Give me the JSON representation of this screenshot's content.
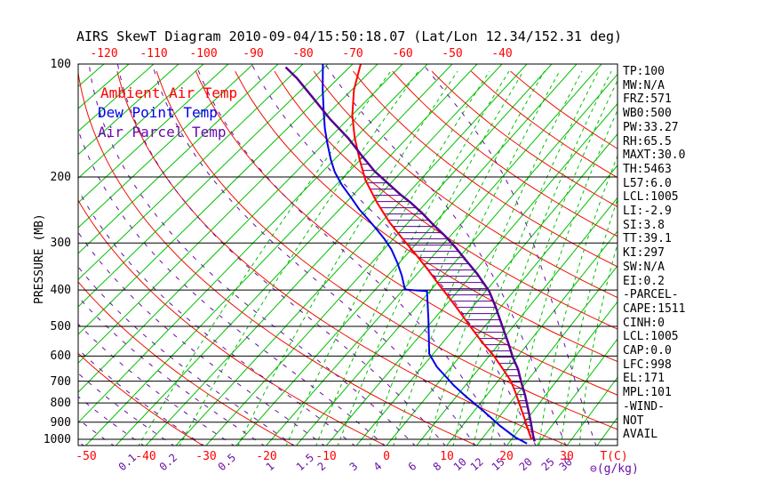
{
  "title": "AIRS SkewT Diagram 2010-09-04/15:50:18.07 (Lat/Lon 12.34/152.31 deg)",
  "legend": {
    "ambient": "Ambient Air Temp",
    "dew": "Dew Point Temp",
    "parcel": "Air Parcel Temp"
  },
  "axes": {
    "pressure_label": "PRESSURE (MB)",
    "pressure_ticks": [
      100,
      200,
      300,
      400,
      500,
      600,
      700,
      800,
      900,
      1000
    ],
    "top_temp_ticks": [
      -120,
      -110,
      -100,
      -90,
      -80,
      -70,
      -60,
      -50,
      -40
    ],
    "bottom_temp_ticks": [
      -50,
      -40,
      -30,
      -20,
      -10,
      0,
      10,
      20,
      30
    ],
    "temp_unit_label": "T(C)",
    "mixing_unit_label": "⊖(g/kg)",
    "mixing_ratio_ticks": [
      0.1,
      0.2,
      0.5,
      1,
      1.5,
      2,
      3,
      4,
      6,
      8,
      10,
      12,
      15,
      20,
      25,
      30
    ]
  },
  "stats": [
    "TP:100",
    "MW:N/A",
    "FRZ:571",
    "WB0:500",
    "PW:33.27",
    "RH:65.5",
    "MAXT:30.0",
    "TH:5463",
    "L57:6.0",
    "LCL:1005",
    "LI:-2.9",
    "SI:3.8",
    "TT:39.1",
    "KI:297",
    "SW:N/A",
    "EI:0.2",
    "-PARCEL-",
    "CAPE:1511",
    "CINH:0",
    "LCL:1005",
    "CAP:0.0",
    "LFC:998",
    "EL:171",
    "MPL:101",
    "-WIND-",
    "NOT",
    "AVAIL"
  ],
  "colors": {
    "isotherm_green": "#00c000",
    "dry_adiabat_red": "#ee1100",
    "mixing_green": "#00c000",
    "moist_purple": "#6a0ba8",
    "ambient_curve": "#ff0000",
    "dew_curve": "#0000e8",
    "parcel_curve": "#550090",
    "axis_black": "#000000",
    "label_red": "#ff0000",
    "label_purple": "#6a0ba8"
  },
  "chart_data": {
    "type": "line",
    "title": "AIRS SkewT Diagram 2010-09-04/15:50:18.07 (Lat/Lon 12.34/152.31 deg)",
    "xlabel": "Temperature (C), skewed axis",
    "ylabel": "Pressure (MB), log scale",
    "pressure_range": [
      100,
      1050
    ],
    "bottom_temp_range": [
      -51,
      38
    ],
    "legend_position": "top-left inside plot",
    "grid": {
      "isotherm_step_c": 5,
      "isotherm_range_c": [
        -145,
        40
      ],
      "dry_adiabat_theta_k": [
        240,
        255,
        270,
        285,
        300,
        315,
        330,
        345,
        360,
        375,
        390,
        405,
        420,
        435,
        450
      ],
      "moist_adiabat_start_c": [
        -50,
        -45,
        -40,
        -35,
        -30,
        -25,
        -20,
        -15,
        -10,
        -5,
        0,
        5,
        10,
        15,
        20,
        25,
        30,
        35
      ],
      "mixing_ratio_g_kg": [
        0.1,
        0.2,
        0.5,
        1,
        1.5,
        2,
        3,
        4,
        6,
        8,
        10,
        12,
        15,
        20,
        25,
        30
      ]
    },
    "hatch_note": "horizontal hatching between ambient and parcel curves where parcel is warmer (CAPE area)",
    "series": [
      {
        "name": "Ambient Air Temp",
        "color": "#ff0000",
        "points_p_t": [
          [
            100,
            -68.4
          ],
          [
            117,
            -64.6
          ],
          [
            137,
            -59.9
          ],
          [
            157,
            -55.2
          ],
          [
            180,
            -50.1
          ],
          [
            204,
            -45.3
          ],
          [
            234,
            -39.2
          ],
          [
            264,
            -33.5
          ],
          [
            290,
            -28.7
          ],
          [
            320,
            -23.6
          ],
          [
            351,
            -19.0
          ],
          [
            387,
            -14.4
          ],
          [
            419,
            -10.6
          ],
          [
            460,
            -6.3
          ],
          [
            503,
            -2.3
          ],
          [
            552,
            1.9
          ],
          [
            598,
            5.7
          ],
          [
            650,
            9.2
          ],
          [
            698,
            12.1
          ],
          [
            745,
            14.3
          ],
          [
            810,
            16.9
          ],
          [
            878,
            19.4
          ],
          [
            936,
            21.3
          ],
          [
            1003,
            23.4
          ]
        ]
      },
      {
        "name": "Dew Point Temp",
        "color": "#0000e8",
        "points_p_t": [
          [
            100,
            -76.0
          ],
          [
            117,
            -70.8
          ],
          [
            134,
            -66.2
          ],
          [
            149,
            -62.6
          ],
          [
            163,
            -59.3
          ],
          [
            180,
            -55.6
          ],
          [
            194,
            -52.6
          ],
          [
            210,
            -48.9
          ],
          [
            227,
            -44.9
          ],
          [
            244,
            -41.3
          ],
          [
            260,
            -37.8
          ],
          [
            276,
            -34.6
          ],
          [
            292,
            -31.7
          ],
          [
            312,
            -28.6
          ],
          [
            338,
            -25.4
          ],
          [
            366,
            -22.5
          ],
          [
            399,
            -19.7
          ],
          [
            403,
            -15.5
          ],
          [
            480,
            -10.9
          ],
          [
            592,
            -5.7
          ],
          [
            641,
            -2.5
          ],
          [
            679,
            0.3
          ],
          [
            718,
            3.0
          ],
          [
            767,
            6.5
          ],
          [
            838,
            11.4
          ],
          [
            922,
            16.4
          ],
          [
            987,
            20.3
          ],
          [
            1026,
            23.1
          ]
        ]
      },
      {
        "name": "Air Parcel Temp",
        "color": "#550090",
        "points_p_t": [
          [
            102,
            -82.8
          ],
          [
            109,
            -78.3
          ],
          [
            123,
            -71.1
          ],
          [
            140,
            -63.6
          ],
          [
            158,
            -56.2
          ],
          [
            176,
            -50.3
          ],
          [
            193,
            -45.2
          ],
          [
            207,
            -40.8
          ],
          [
            222,
            -36.4
          ],
          [
            234,
            -32.9
          ],
          [
            250,
            -28.9
          ],
          [
            267,
            -25.2
          ],
          [
            286,
            -21.2
          ],
          [
            307,
            -17.4
          ],
          [
            334,
            -13.2
          ],
          [
            362,
            -9.2
          ],
          [
            403,
            -4.4
          ],
          [
            444,
            -0.9
          ],
          [
            503,
            3.3
          ],
          [
            552,
            6.4
          ],
          [
            605,
            9.3
          ],
          [
            650,
            11.8
          ],
          [
            706,
            14.2
          ],
          [
            765,
            16.6
          ],
          [
            829,
            18.8
          ],
          [
            900,
            21.0
          ],
          [
            977,
            23.1
          ],
          [
            1013,
            24.1
          ]
        ]
      }
    ]
  }
}
